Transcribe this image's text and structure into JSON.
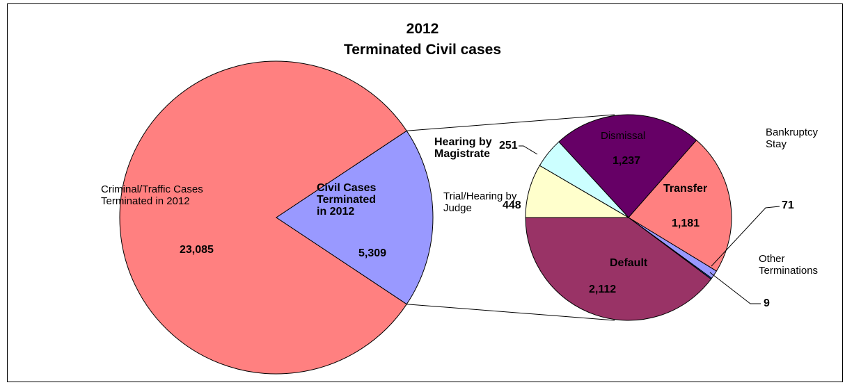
{
  "chart_data": [
    {
      "type": "pie",
      "title": "2012",
      "subtitle": "Terminated Civil cases",
      "categories": [
        "Criminal/Traffic Cases Terminated in 2012",
        "Civil Cases Terminated in 2012"
      ],
      "values": [
        23085,
        5309
      ],
      "value_labels": [
        "23,085",
        "5,309"
      ],
      "colors": [
        "#ff8080",
        "#9999ff"
      ]
    },
    {
      "type": "pie",
      "categories": [
        "Dismissal",
        "Transfer",
        "Bankruptcy Stay",
        "Other Terminations",
        "Default",
        "Trial/Hearing by Judge",
        "Hearing by Magistrate"
      ],
      "values": [
        1237,
        1181,
        71,
        9,
        2112,
        448,
        251
      ],
      "value_labels": [
        "1,237",
        "1,181",
        "71",
        "9",
        "2,112",
        "448",
        "251"
      ],
      "colors": [
        "#660066",
        "#ff8080",
        "#9999ff",
        "#0066cc",
        "#993366",
        "#ffffcc",
        "#ccffff"
      ]
    }
  ]
}
